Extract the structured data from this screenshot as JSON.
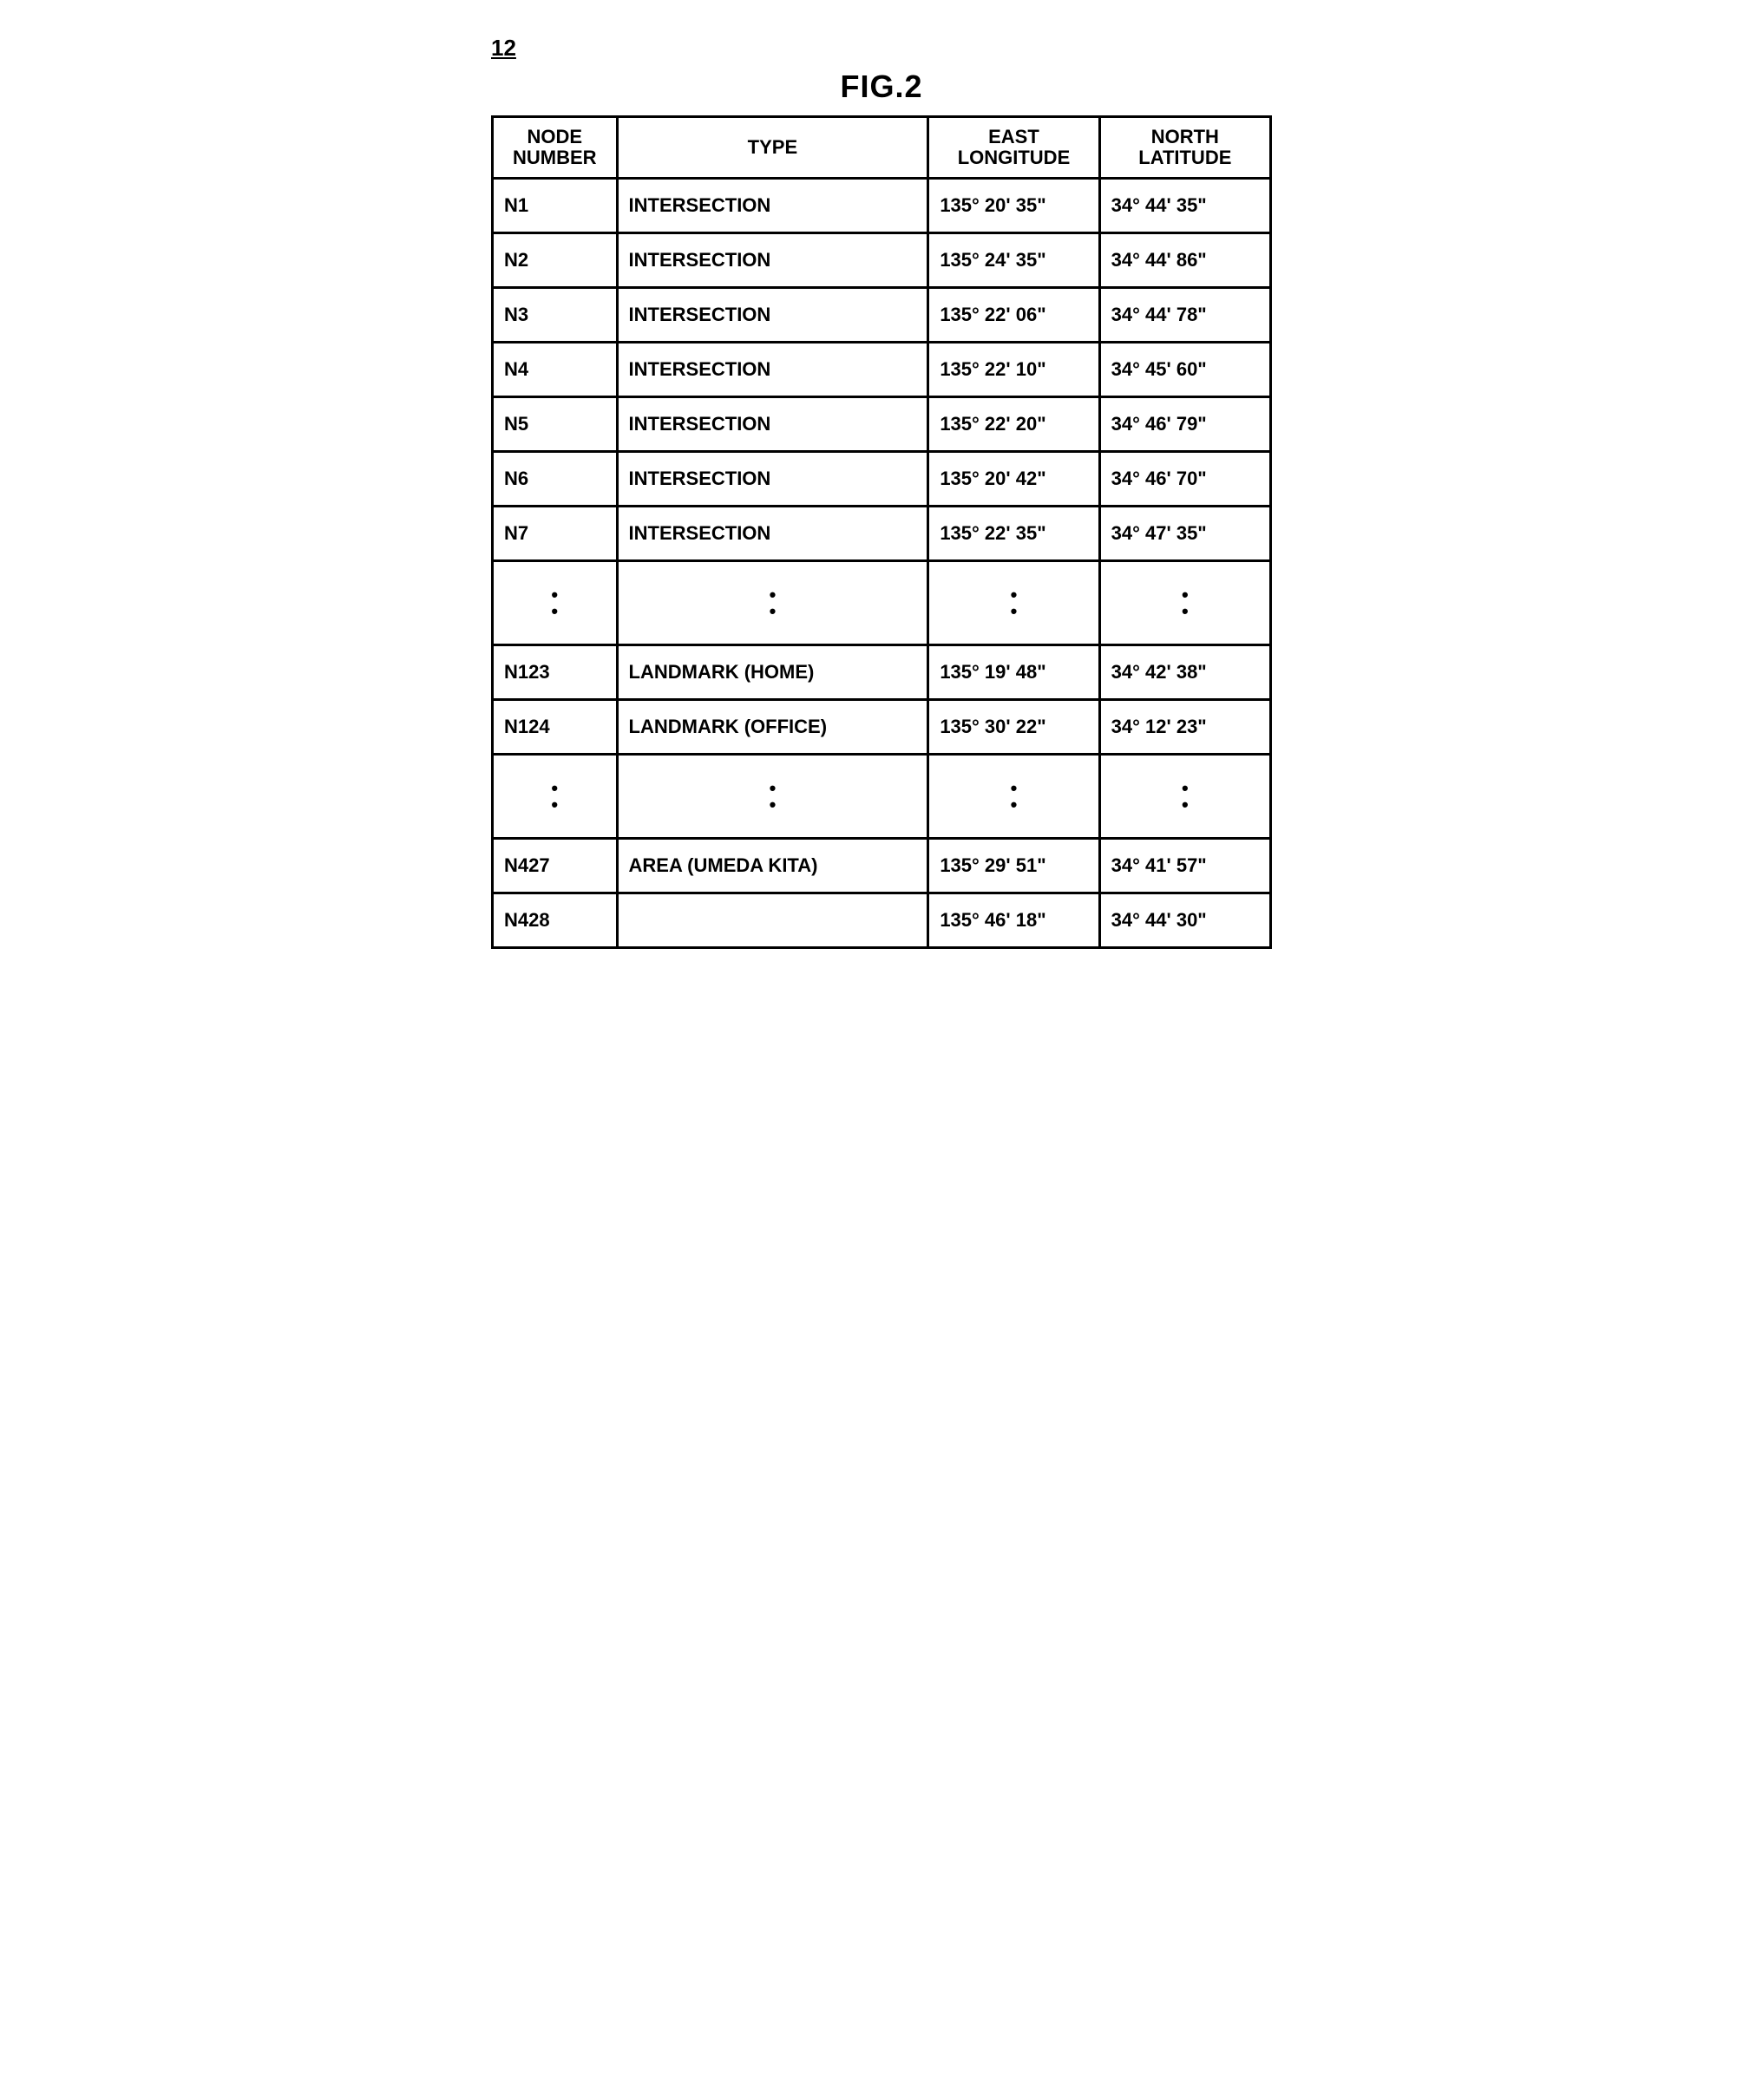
{
  "figure": {
    "ref_number": "12",
    "title": "FIG.2"
  },
  "table": {
    "headers": {
      "node": "NODE\nNUMBER",
      "type": "TYPE",
      "lon": "EAST\nLONGITUDE",
      "lat": "NORTH\nLATITUDE"
    },
    "rows": [
      {
        "node": "N1",
        "type": "INTERSECTION",
        "lon": "135°  20' 35\"",
        "lat": "34°  44' 35\""
      },
      {
        "node": "N2",
        "type": "INTERSECTION",
        "lon": "135°  24' 35\"",
        "lat": "34°  44' 86\""
      },
      {
        "node": "N3",
        "type": "INTERSECTION",
        "lon": "135°  22' 06\"",
        "lat": "34°  44' 78\""
      },
      {
        "node": "N4",
        "type": "INTERSECTION",
        "lon": "135°  22' 10\"",
        "lat": "34°  45' 60\""
      },
      {
        "node": "N5",
        "type": "INTERSECTION",
        "lon": "135°  22' 20\"",
        "lat": "34°  46' 79\""
      },
      {
        "node": "N6",
        "type": "INTERSECTION",
        "lon": "135°  20' 42\"",
        "lat": "34°  46' 70\""
      },
      {
        "node": "N7",
        "type": "INTERSECTION",
        "lon": "135°  22' 35\"",
        "lat": "34°  47' 35\""
      },
      {
        "ellipsis": true
      },
      {
        "node": "N123",
        "type": "LANDMARK (HOME)",
        "lon": "135°  19' 48\"",
        "lat": "34°  42' 38\""
      },
      {
        "node": "N124",
        "type": "LANDMARK (OFFICE)",
        "lon": "135°  30' 22\"",
        "lat": "34°  12' 23\""
      },
      {
        "ellipsis": true
      },
      {
        "node": "N427",
        "type": "AREA (UMEDA KITA)",
        "lon": "135°  29' 51\"",
        "lat": "34°  41' 57\""
      },
      {
        "node": "N428",
        "type": "",
        "lon": "135°  46' 18\"",
        "lat": "34°  44' 30\""
      }
    ]
  },
  "style": {
    "border_color": "#000000",
    "background": "#ffffff",
    "font_family": "Arial",
    "header_fontsize": 22,
    "cell_fontsize": 22,
    "title_fontsize": 36,
    "border_width": 3
  }
}
